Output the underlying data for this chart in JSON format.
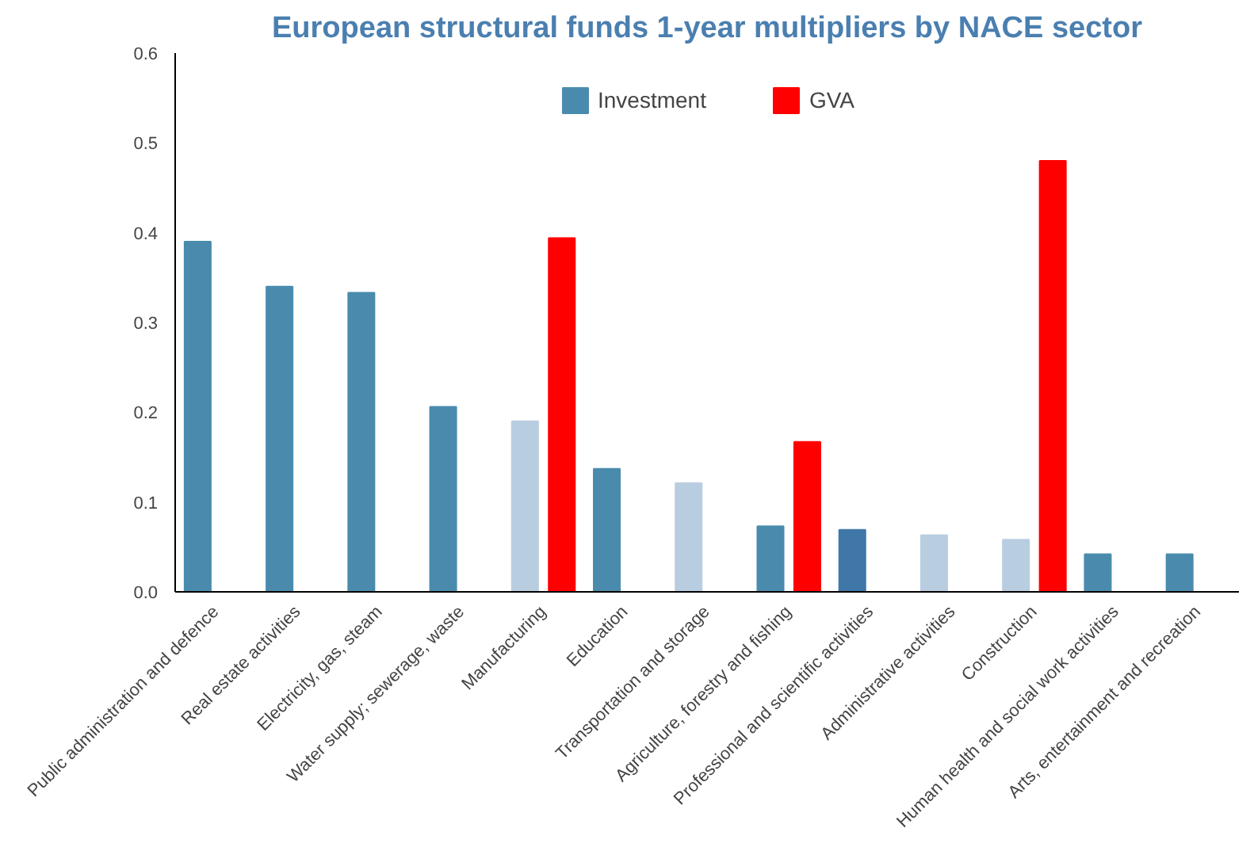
{
  "chart_data": {
    "type": "bar",
    "title": "European structural funds 1-year multipliers by NACE sector",
    "categories": [
      "Public administration and defence",
      "Real estate activities",
      "Electricity, gas, steam",
      "Water supply; sewerage, waste",
      "Manufacturing",
      "Education",
      "Transportation and storage",
      "Agriculture, forestry and fishing",
      "Professional and scientific activities",
      "Administrative activities",
      "Construction",
      "Human health and social work activities",
      "Arts, entertainment and recreation"
    ],
    "series": [
      {
        "name": "Investment",
        "color": "#4a8bad",
        "colors": [
          "#4a8bad",
          "#4a8bad",
          "#4a8bad",
          "#4a8bad",
          "#b9cde0",
          "#4a8bad",
          "#b9cde0",
          "#4a8bad",
          "#3f78a8",
          "#b9cde0",
          "#b9cde0",
          "#4a8bad",
          "#4a8bad"
        ],
        "values": [
          0.39,
          0.34,
          0.333,
          0.206,
          0.19,
          0.137,
          0.121,
          0.073,
          0.069,
          0.063,
          0.058,
          0.042,
          0.042
        ]
      },
      {
        "name": "GVA",
        "color": "#ff0000",
        "values": [
          null,
          null,
          null,
          null,
          0.394,
          null,
          null,
          0.167,
          null,
          null,
          0.48,
          null,
          null
        ]
      }
    ],
    "ylim": [
      0,
      0.6
    ],
    "yticks": [
      {
        "value": 0,
        "label": "0.0"
      },
      0.1,
      0.2,
      0.3,
      0.4,
      0.5,
      0.6
    ],
    "grid": false,
    "legend": "top"
  }
}
